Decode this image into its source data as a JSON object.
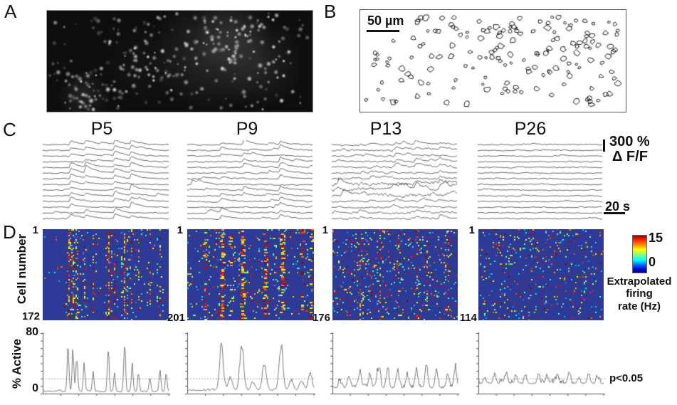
{
  "figure": {
    "panel_labels": {
      "a": "A",
      "b": "B",
      "c": "C",
      "d": "D"
    },
    "ages": [
      "P5",
      "P9",
      "P13",
      "P26"
    ],
    "scalebar_b": {
      "label": "50 µm"
    },
    "trace_scale": {
      "amplitude": "300 %",
      "unit": "Δ F/F",
      "time": "20 s"
    },
    "cell_axis": {
      "label": "Cell number",
      "top_tick": "1",
      "counts": [
        "172",
        "201",
        "176",
        "114"
      ]
    },
    "colorbar": {
      "max": "15",
      "min": "0",
      "label_lines": [
        "Extrapolated",
        "firing",
        "rate (Hz)"
      ]
    },
    "active_axis": {
      "label": "% Active",
      "max": "80",
      "min": "0",
      "threshold_label": "p<0.05"
    },
    "colors": {
      "heatmap_bg": "#2d3a96",
      "trace": "#414141",
      "active_trace": "#6b6b6b",
      "threshold_line": "#999999",
      "axis": "#555555"
    }
  },
  "generation": {
    "panel_a": {
      "seed": 41,
      "n_dots": 340,
      "clusters": [
        [
          0.62,
          0.42,
          85,
          0.16
        ],
        [
          0.8,
          0.52,
          65,
          0.12
        ],
        [
          0.7,
          0.2,
          55,
          0.1
        ],
        [
          0.14,
          0.84,
          38,
          0.12
        ],
        [
          0.36,
          0.55,
          60,
          0.04
        ]
      ]
    },
    "panel_b": {
      "seed": 7,
      "n_cells": 168
    }
  },
  "chart_data": [
    {
      "type": "heatmap",
      "age": "P5",
      "n_cells": 172,
      "traces": {
        "seed": 11,
        "rows": 14,
        "sync_events": [
          0.21,
          0.33,
          0.56,
          0.69
        ],
        "sync_prob": 0.88,
        "amp": 7,
        "rand_events": 1,
        "noise": 0.9
      },
      "heatmap": {
        "seed": 21,
        "background_density": 0.012,
        "streak_width": 1,
        "streaks": [
          [
            0.2,
            0.6
          ],
          [
            0.24,
            0.65
          ],
          [
            0.27,
            0.5
          ],
          [
            0.33,
            0.38
          ],
          [
            0.4,
            0.3
          ],
          [
            0.52,
            0.7
          ],
          [
            0.57,
            0.28
          ],
          [
            0.65,
            0.75
          ],
          [
            0.71,
            0.42
          ],
          [
            0.76,
            0.28
          ],
          [
            0.85,
            0.25
          ],
          [
            0.93,
            0.32
          ]
        ]
      },
      "percent_active": {
        "seed": 31,
        "ylim": [
          0,
          80
        ],
        "threshold": 20,
        "baseline": 2.5,
        "noise": 1.2,
        "peak_width": 0.01,
        "peaks": [
          [
            0.2,
            57
          ],
          [
            0.24,
            60
          ],
          [
            0.27,
            48
          ],
          [
            0.33,
            35
          ],
          [
            0.4,
            28
          ],
          [
            0.52,
            65
          ],
          [
            0.57,
            25
          ],
          [
            0.65,
            72
          ],
          [
            0.71,
            40
          ],
          [
            0.76,
            25
          ],
          [
            0.85,
            22
          ],
          [
            0.93,
            30
          ],
          [
            0.98,
            28
          ]
        ]
      }
    },
    {
      "type": "heatmap",
      "age": "P9",
      "n_cells": 201,
      "traces": {
        "seed": 12,
        "rows": 14,
        "sync_events": [
          0.26,
          0.44,
          0.73
        ],
        "sync_prob": 0.65,
        "amp": 6.5,
        "rand_events": 2,
        "noise": 1.1
      },
      "heatmap": {
        "seed": 22,
        "background_density": 0.05,
        "streak_width": 2,
        "streaks": [
          [
            0.13,
            0.3
          ],
          [
            0.27,
            0.65
          ],
          [
            0.34,
            0.25
          ],
          [
            0.43,
            0.7
          ],
          [
            0.61,
            0.4
          ],
          [
            0.74,
            0.65
          ],
          [
            0.9,
            0.2
          ],
          [
            0.97,
            0.3
          ]
        ]
      },
      "percent_active": {
        "seed": 32,
        "ylim": [
          0,
          80
        ],
        "threshold": 20,
        "baseline": 4,
        "noise": 1.5,
        "peak_width": 0.022,
        "peaks": [
          [
            0.27,
            62
          ],
          [
            0.34,
            20
          ],
          [
            0.43,
            66
          ],
          [
            0.52,
            12
          ],
          [
            0.61,
            38
          ],
          [
            0.74,
            62
          ],
          [
            0.82,
            15
          ],
          [
            0.9,
            14
          ],
          [
            0.97,
            25
          ]
        ]
      }
    },
    {
      "type": "heatmap",
      "age": "P13",
      "n_cells": 176,
      "traces": {
        "seed": 13,
        "rows": 14,
        "sync_events": [
          0.3,
          0.5,
          0.66,
          0.85
        ],
        "sync_prob": 0.45,
        "amp": 5,
        "rand_events": 4,
        "noise": 1.6,
        "wild_rows": [
          7,
          8,
          9
        ]
      },
      "heatmap": {
        "seed": 23,
        "background_density": 0.075,
        "streak_width": 1,
        "streaks": [
          [
            0.22,
            0.3
          ],
          [
            0.37,
            0.32
          ],
          [
            0.52,
            0.28
          ],
          [
            0.67,
            0.3
          ],
          [
            0.75,
            0.35
          ],
          [
            0.92,
            0.28
          ]
        ]
      },
      "percent_active": {
        "seed": 33,
        "ylim": [
          0,
          80
        ],
        "threshold": 20,
        "baseline": 7,
        "noise": 3,
        "peak_width": 0.016,
        "peaks": [
          [
            0.06,
            10
          ],
          [
            0.13,
            18
          ],
          [
            0.22,
            26
          ],
          [
            0.3,
            20
          ],
          [
            0.37,
            30
          ],
          [
            0.44,
            22
          ],
          [
            0.52,
            26
          ],
          [
            0.6,
            18
          ],
          [
            0.67,
            28
          ],
          [
            0.75,
            34
          ],
          [
            0.83,
            26
          ],
          [
            0.92,
            22
          ],
          [
            0.98,
            30
          ]
        ]
      }
    },
    {
      "type": "heatmap",
      "age": "P26",
      "n_cells": 114,
      "traces": {
        "seed": 14,
        "rows": 14,
        "sync_events": [],
        "sync_prob": 0,
        "amp": 3.5,
        "rand_events": 2,
        "noise": 1.0
      },
      "heatmap": {
        "seed": 24,
        "background_density": 0.065,
        "streak_width": 1,
        "streaks": []
      },
      "percent_active": {
        "seed": 34,
        "ylim": [
          0,
          80
        ],
        "threshold": 20,
        "baseline": 13,
        "noise": 3.5,
        "peak_width": 0.015,
        "peaks": [
          [
            0.05,
            8
          ],
          [
            0.13,
            14
          ],
          [
            0.22,
            10
          ],
          [
            0.3,
            12
          ],
          [
            0.38,
            8
          ],
          [
            0.48,
            12
          ],
          [
            0.55,
            9
          ],
          [
            0.63,
            13
          ],
          [
            0.72,
            10
          ],
          [
            0.8,
            8
          ],
          [
            0.88,
            14
          ],
          [
            0.95,
            10
          ]
        ]
      }
    }
  ]
}
